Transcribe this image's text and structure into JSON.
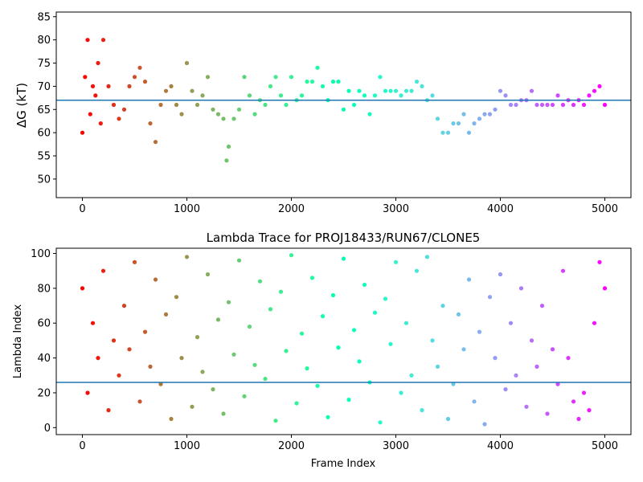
{
  "chart_data": [
    {
      "type": "scatter",
      "title": "",
      "xlabel": "",
      "ylabel": "ΔG (kT)",
      "xlim": [
        -250,
        5250
      ],
      "ylim": [
        46,
        86
      ],
      "xticks": [
        0,
        1000,
        2000,
        3000,
        4000,
        5000
      ],
      "yticks": [
        50,
        55,
        60,
        65,
        70,
        75,
        80,
        85
      ],
      "hline": 67,
      "hline_color": "#1f77b4",
      "colormap": "rainbow_reversed",
      "grid": false,
      "legend": "none",
      "series": [
        {
          "x": [
            0,
            25,
            50,
            75,
            100,
            125,
            150,
            175,
            200,
            250,
            300,
            350,
            400,
            450,
            500,
            550,
            600,
            650,
            700,
            750,
            800,
            850,
            900,
            950,
            1000,
            1050,
            1100,
            1150,
            1200,
            1250,
            1300,
            1350,
            1380,
            1400,
            1450,
            1500,
            1550,
            1600,
            1650,
            1700,
            1750,
            1800,
            1850,
            1900,
            1950,
            2000,
            2050,
            2100,
            2150,
            2200,
            2250,
            2300,
            2350,
            2400,
            2450,
            2500,
            2550,
            2600,
            2650,
            2700,
            2750,
            2800,
            2850,
            2900,
            2950,
            3000,
            3050,
            3100,
            3150,
            3200,
            3250,
            3300,
            3350,
            3400,
            3450,
            3500,
            3550,
            3600,
            3650,
            3700,
            3750,
            3800,
            3850,
            3900,
            3950,
            4000,
            4050,
            4100,
            4150,
            4200,
            4250,
            4300,
            4350,
            4400,
            4450,
            4500,
            4550,
            4600,
            4650,
            4700,
            4750,
            4800,
            4850,
            4900,
            4950,
            5000
          ],
          "y": [
            60,
            72,
            80,
            64,
            70,
            68,
            75,
            62,
            80,
            70,
            66,
            63,
            65,
            70,
            72,
            74,
            71,
            62,
            58,
            66,
            69,
            70,
            66,
            64,
            75,
            69,
            66,
            68,
            72,
            65,
            64,
            63,
            54,
            57,
            63,
            65,
            72,
            68,
            64,
            67,
            66,
            70,
            72,
            68,
            66,
            72,
            67,
            68,
            71,
            71,
            74,
            70,
            67,
            71,
            71,
            65,
            69,
            66,
            69,
            68,
            64,
            68,
            72,
            69,
            69,
            69,
            68,
            69,
            69,
            71,
            70,
            67,
            68,
            63,
            60,
            60,
            62,
            62,
            64,
            60,
            62,
            63,
            64,
            64,
            65,
            69,
            68,
            66,
            66,
            67,
            67,
            69,
            66,
            66,
            66,
            66,
            68,
            66,
            67,
            66,
            67,
            66,
            68,
            69,
            70,
            66
          ]
        }
      ]
    },
    {
      "type": "scatter",
      "title": "Lambda Trace for PROJ18433/RUN67/CLONE5",
      "xlabel": "Frame Index",
      "ylabel": "Lambda Index",
      "xlim": [
        -250,
        5250
      ],
      "ylim": [
        -4,
        103
      ],
      "xticks": [
        0,
        1000,
        2000,
        3000,
        4000,
        5000
      ],
      "yticks": [
        0,
        20,
        40,
        60,
        80,
        100
      ],
      "hline": 26,
      "hline_color": "#1f77b4",
      "colormap": "rainbow_reversed",
      "grid": false,
      "legend": "none",
      "series": [
        {
          "x": [
            0,
            50,
            100,
            150,
            200,
            250,
            300,
            350,
            400,
            450,
            500,
            550,
            600,
            650,
            700,
            750,
            800,
            850,
            900,
            950,
            1000,
            1050,
            1100,
            1150,
            1200,
            1250,
            1300,
            1350,
            1400,
            1450,
            1500,
            1550,
            1600,
            1650,
            1700,
            1750,
            1800,
            1850,
            1900,
            1950,
            2000,
            2050,
            2100,
            2150,
            2200,
            2250,
            2300,
            2350,
            2400,
            2450,
            2500,
            2550,
            2600,
            2650,
            2700,
            2750,
            2800,
            2850,
            2900,
            2950,
            3000,
            3050,
            3100,
            3150,
            3200,
            3250,
            3300,
            3350,
            3400,
            3450,
            3500,
            3550,
            3600,
            3650,
            3700,
            3750,
            3800,
            3850,
            3900,
            3950,
            4000,
            4050,
            4100,
            4150,
            4200,
            4250,
            4300,
            4350,
            4400,
            4450,
            4500,
            4550,
            4600,
            4650,
            4700,
            4750,
            4800,
            4850,
            4900,
            4950,
            5000
          ],
          "y": [
            80,
            20,
            60,
            40,
            90,
            10,
            50,
            30,
            70,
            45,
            95,
            15,
            55,
            35,
            85,
            25,
            65,
            5,
            75,
            40,
            98,
            12,
            52,
            32,
            88,
            22,
            62,
            8,
            72,
            42,
            96,
            18,
            58,
            36,
            84,
            28,
            68,
            4,
            78,
            44,
            99,
            14,
            54,
            34,
            86,
            24,
            64,
            6,
            76,
            46,
            97,
            16,
            56,
            38,
            82,
            26,
            66,
            3,
            74,
            48,
            95,
            20,
            60,
            30,
            90,
            10,
            98,
            50,
            35,
            70,
            5,
            25,
            65,
            45,
            85,
            15,
            55,
            2,
            75,
            40,
            88,
            22,
            60,
            30,
            80,
            12,
            50,
            35,
            70,
            8,
            45,
            25,
            90,
            40,
            15,
            5,
            20,
            10,
            60,
            95,
            80
          ]
        }
      ]
    }
  ]
}
